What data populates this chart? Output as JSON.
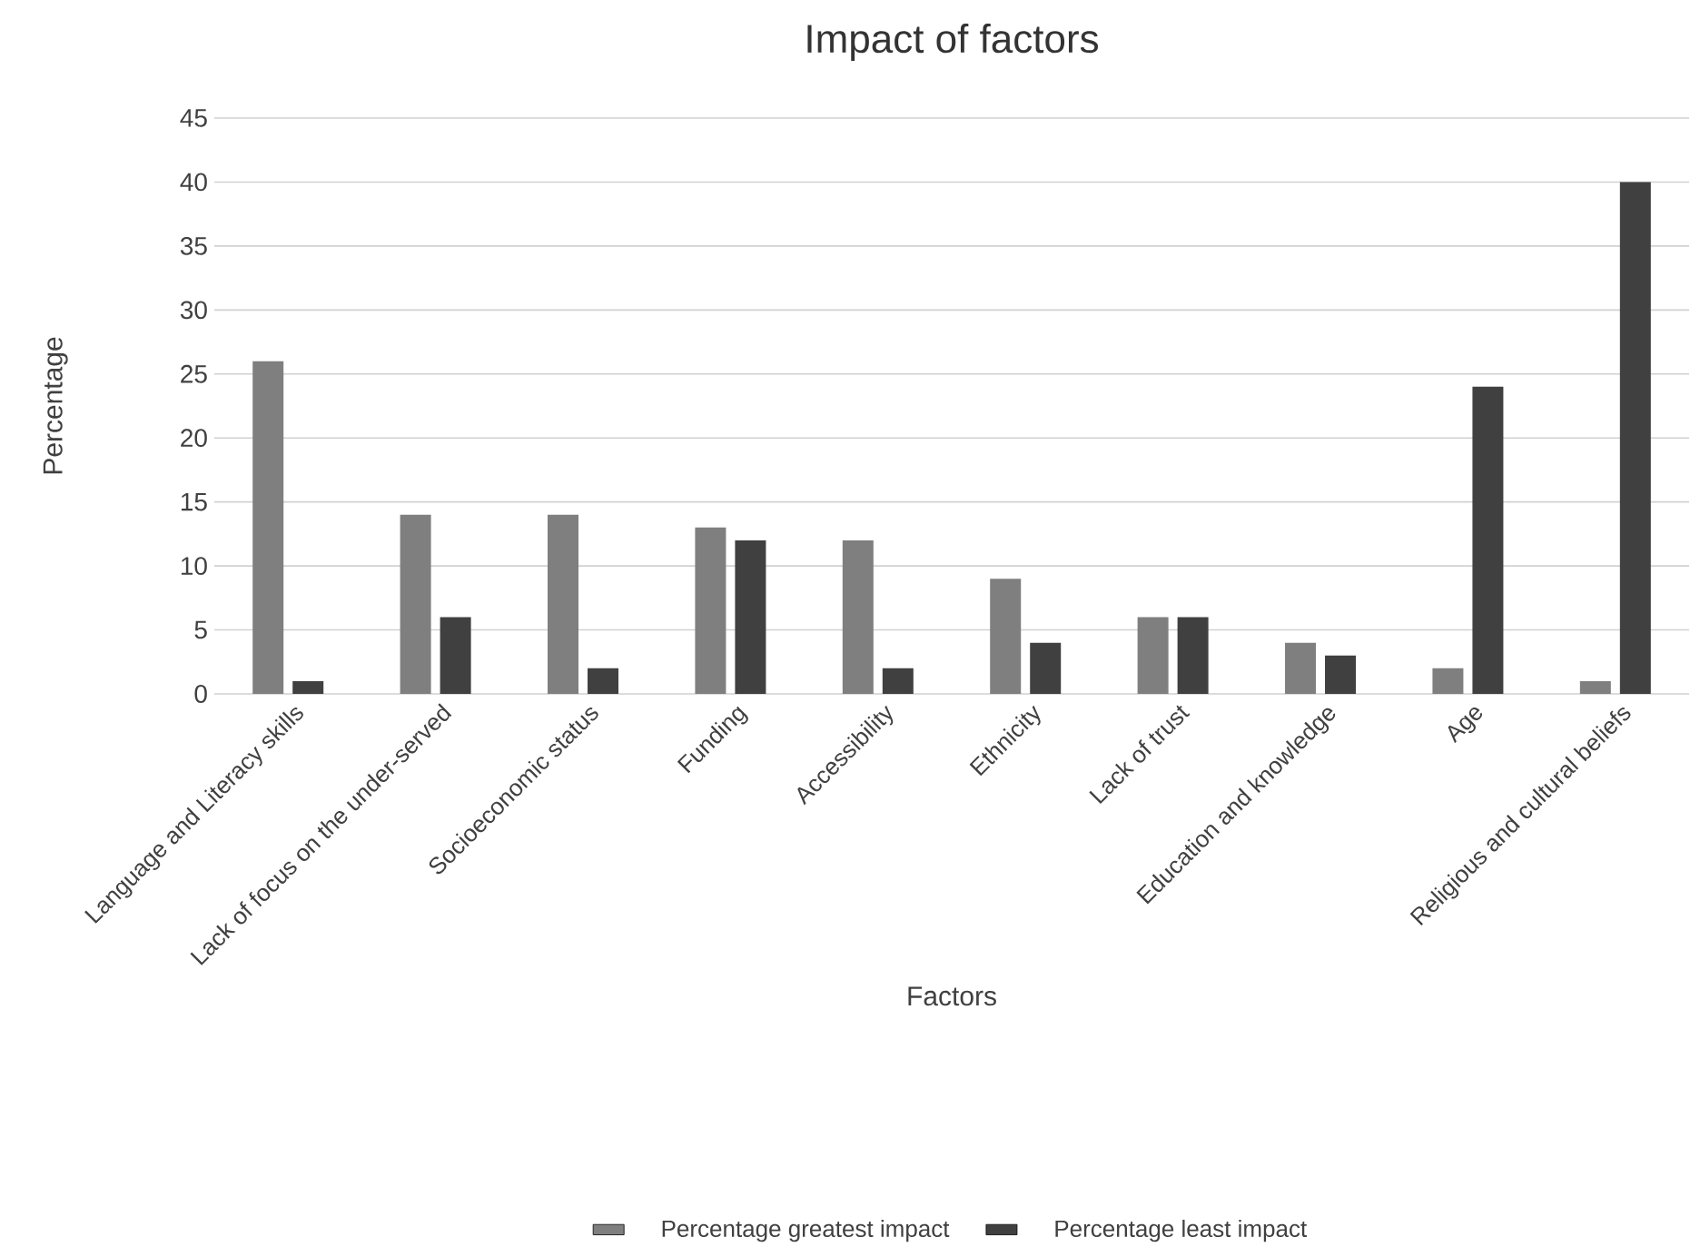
{
  "chart_data": {
    "type": "bar",
    "title": "Impact of factors",
    "xlabel": "Factors",
    "ylabel": "Percentage",
    "categories": [
      "Language and Literacy skills",
      "Lack of focus on the under-served",
      "Socioeconomic status",
      "Funding",
      "Accessibility",
      "Ethnicity",
      "Lack of trust",
      "Education and knowledge",
      "Age",
      "Religious and cultural beliefs"
    ],
    "series": [
      {
        "name": "Percentage greatest impact",
        "color": "#7f7f7f",
        "values": [
          26,
          14,
          14,
          13,
          12,
          9,
          6,
          4,
          2,
          1
        ]
      },
      {
        "name": "Percentage least impact",
        "color": "#404040",
        "values": [
          1,
          6,
          2,
          12,
          2,
          4,
          6,
          3,
          24,
          40
        ]
      }
    ],
    "ylim": [
      0,
      45
    ],
    "yticks": [
      0,
      5,
      10,
      15,
      20,
      25,
      30,
      35,
      40,
      45
    ],
    "grid": "y",
    "legend": "bottom"
  }
}
